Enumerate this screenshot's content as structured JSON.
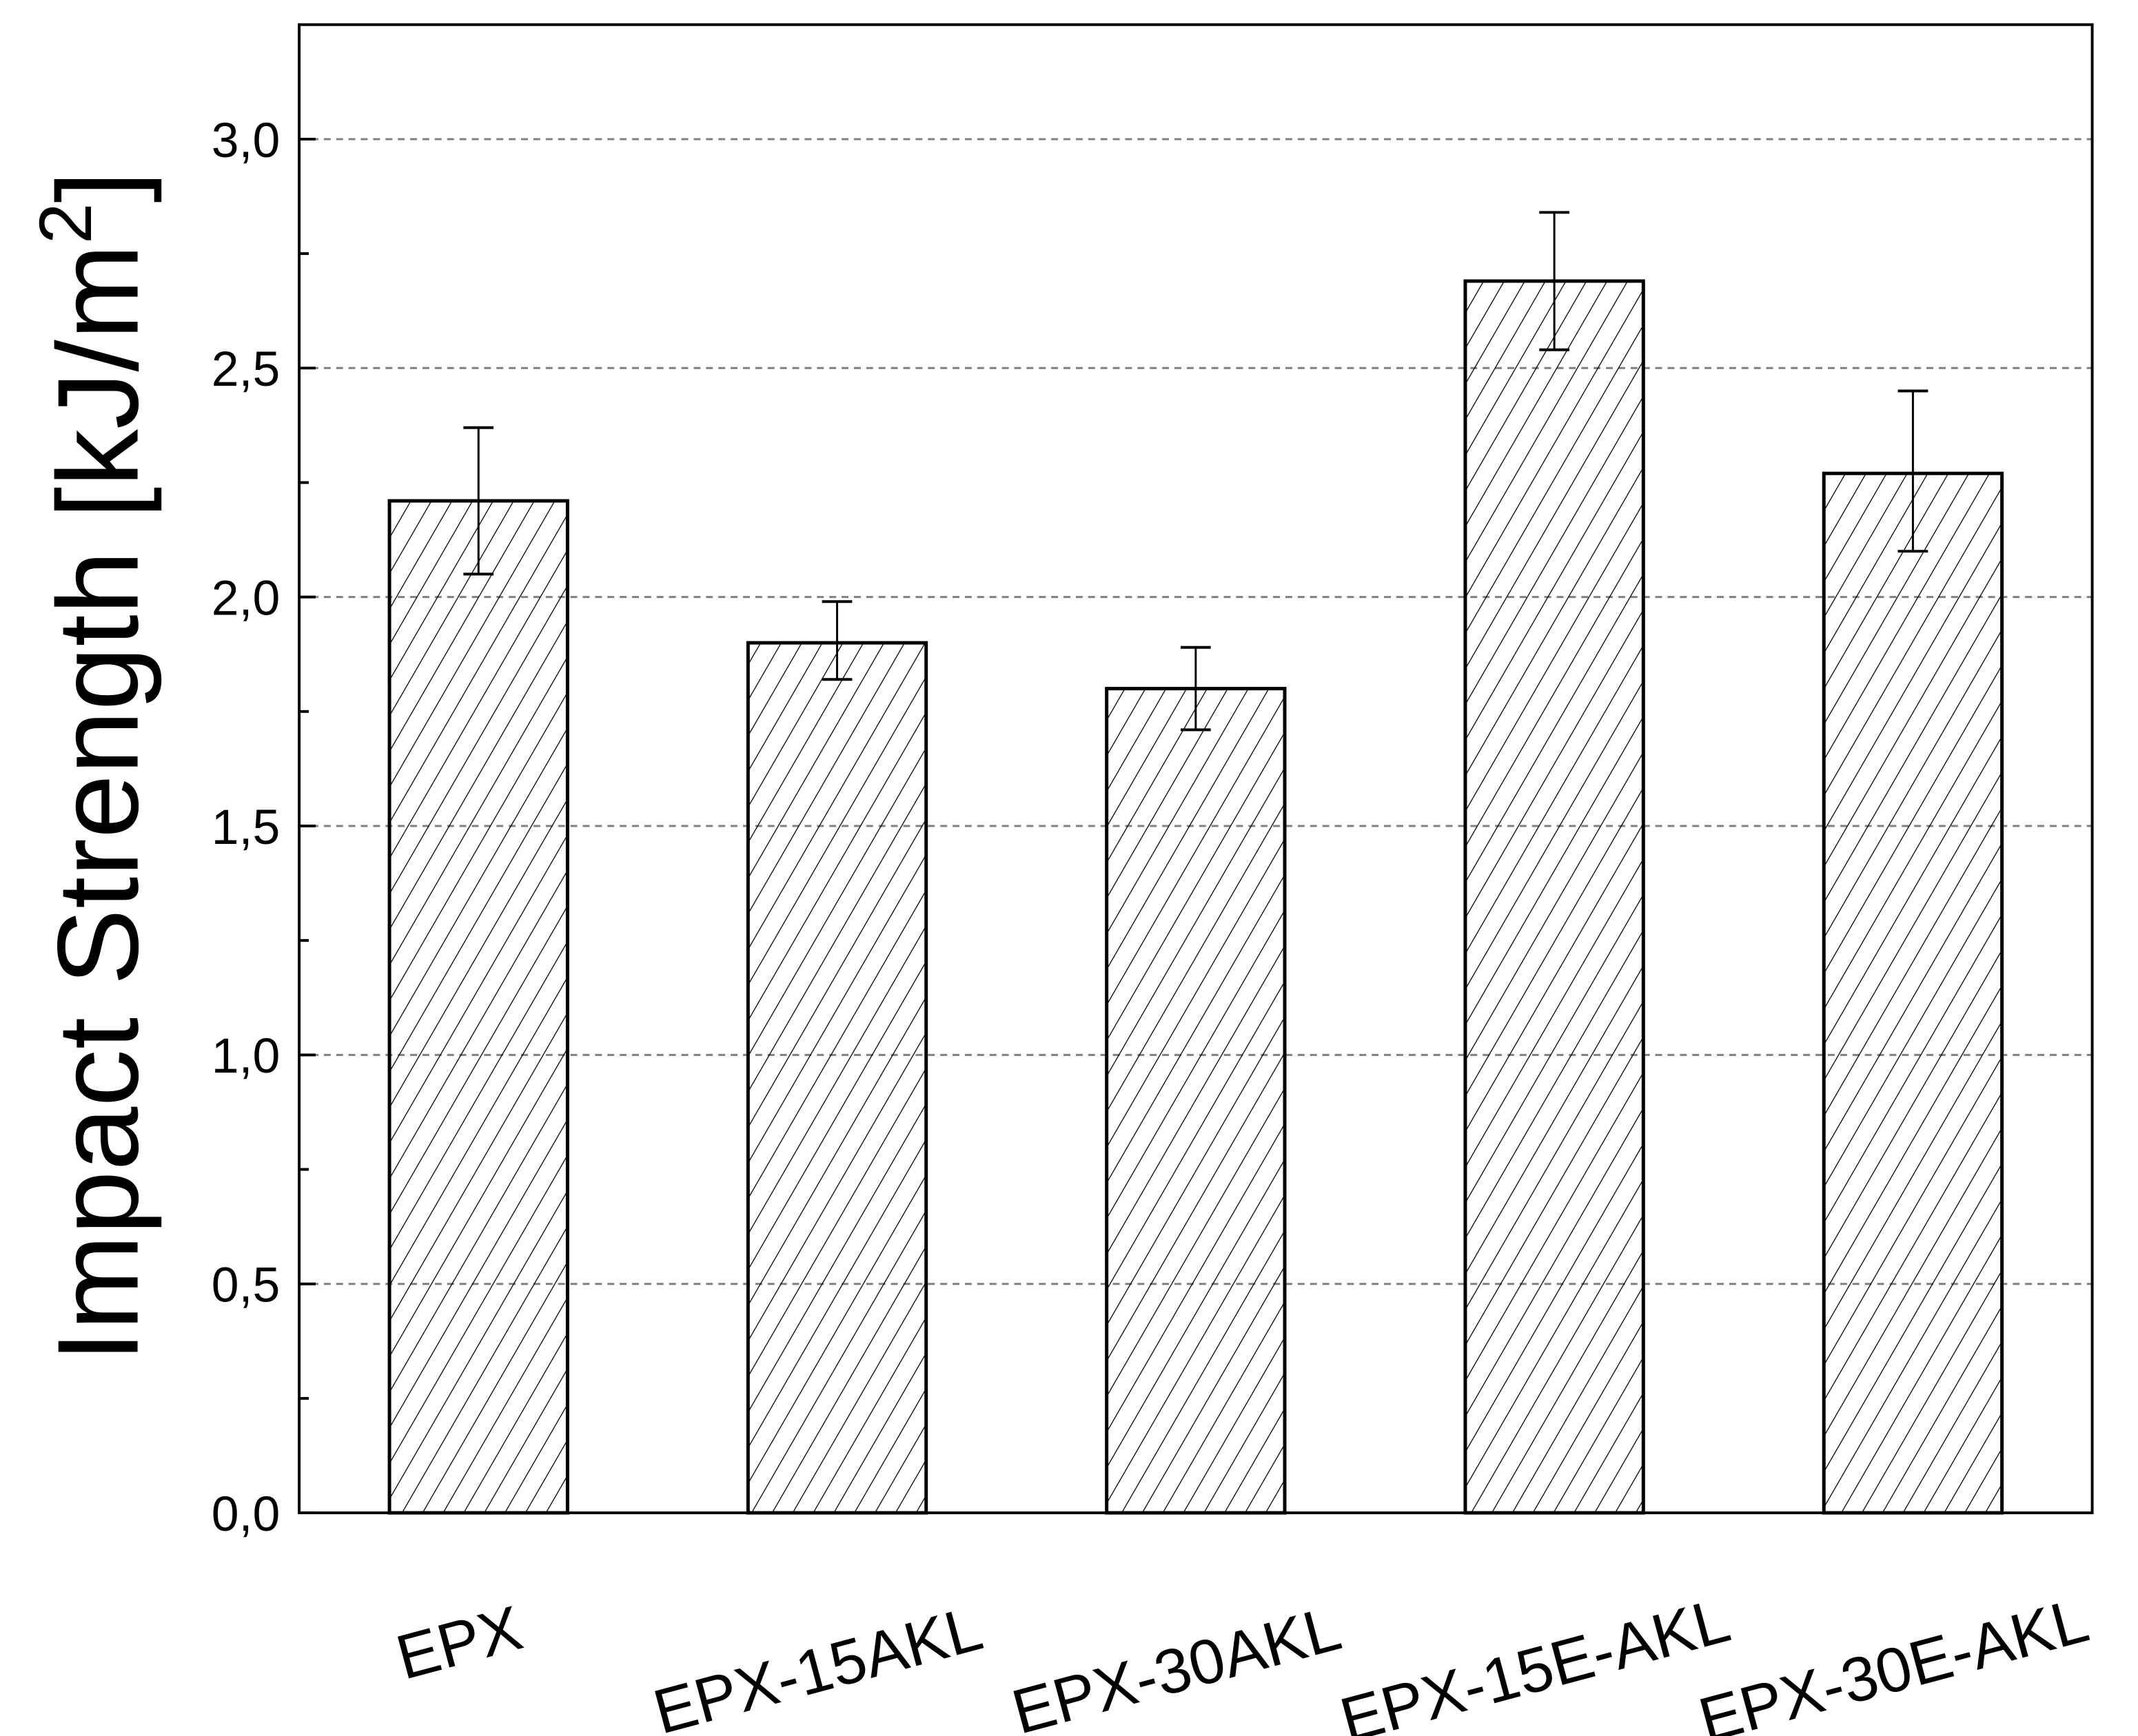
{
  "chart_data": {
    "type": "bar",
    "title": "",
    "xlabel": "",
    "ylabel": "Impact Strength [kJ/m",
    "ylabel_superscript": "2",
    "ylabel_close": "]",
    "categories": [
      "EPX",
      "EPX-15AKL",
      "EPX-30AKL",
      "EPX-15E-AKL",
      "EPX-30E-AKL"
    ],
    "values": [
      2.21,
      1.9,
      1.8,
      2.69,
      2.27
    ],
    "error_upper": [
      2.37,
      1.99,
      1.89,
      2.84,
      2.45
    ],
    "error_lower": [
      2.05,
      1.82,
      1.71,
      2.54,
      2.1
    ],
    "ylim": [
      0,
      3.25
    ],
    "yticks": [
      0,
      0.5,
      1.0,
      1.5,
      2.0,
      2.5,
      3.0
    ],
    "ytick_labels": [
      "0,0",
      "0,5",
      "1,0",
      "1,5",
      "2,0",
      "2,5",
      "3,0"
    ],
    "grid": "horizontal dashed at major ticks",
    "bar_fill": "diagonal hatch",
    "colors": {
      "bar_edge": "#000000",
      "grid": "#808080",
      "background": "#ffffff"
    }
  }
}
